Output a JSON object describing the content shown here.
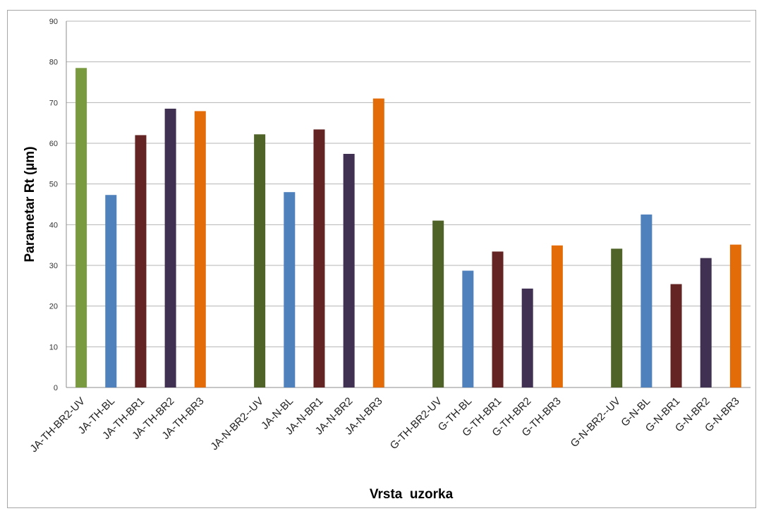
{
  "chart_data": {
    "type": "bar",
    "title": "",
    "xlabel": "Vrsta  uzorka",
    "ylabel": "Parametar Rt (µm)",
    "ylim": [
      0,
      90
    ],
    "yticks": [
      0,
      10,
      20,
      30,
      40,
      50,
      60,
      70,
      80,
      90
    ],
    "grid": true,
    "legend": "none",
    "groups": [
      {
        "categories": [
          "JA-TH-BR2-UV",
          "JA-TH-BL",
          "JA-TH-BR1",
          "JA-TH-BR2",
          "JA-TH-BR3"
        ],
        "values": [
          78.5,
          47.3,
          62.0,
          68.5,
          67.9
        ]
      },
      {
        "categories": [
          "JA-N-BR2--UV",
          "JA-N-BL",
          "JA-N-BR1",
          "JA-N-BR2",
          "JA-N-BR3"
        ],
        "values": [
          62.2,
          48.0,
          63.4,
          57.4,
          71.0
        ]
      },
      {
        "categories": [
          "G-TH-BR2-UV",
          "G-TH-BL",
          "G-TH-BR1",
          "G-TH-BR2",
          "G-TH-BR3"
        ],
        "values": [
          41.0,
          28.7,
          33.4,
          24.3,
          34.9
        ]
      },
      {
        "categories": [
          "G-N-BR2--UV",
          "G-N-BL",
          "G-N-BR1",
          "G-N-BR2",
          "G-N-BR3"
        ],
        "values": [
          34.1,
          42.5,
          25.4,
          31.8,
          35.1
        ]
      }
    ],
    "group_colors": [
      [
        "#7a9a3f",
        "#4f81bd",
        "#632423",
        "#403152",
        "#e36c09"
      ],
      [
        "#4f6228",
        "#4f81bd",
        "#632423",
        "#403152",
        "#e36c09"
      ],
      [
        "#4f6228",
        "#4f81bd",
        "#632423",
        "#403152",
        "#e36c09"
      ],
      [
        "#4f6228",
        "#4f81bd",
        "#632423",
        "#403152",
        "#e36c09"
      ]
    ]
  }
}
